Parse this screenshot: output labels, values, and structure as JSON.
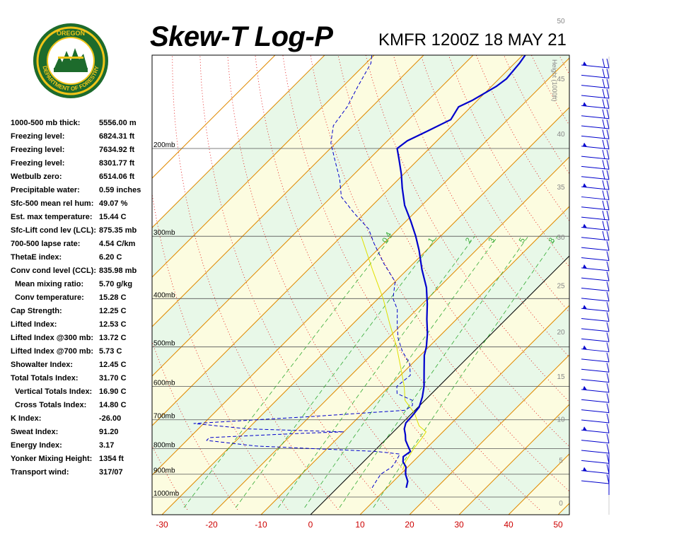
{
  "title": "Skew-T Log-P",
  "station_line": "KMFR 1200Z 18 MAY 21",
  "logo": {
    "top_text": "OREGON",
    "bottom_text": "DEPARTMENT OF FORESTRY"
  },
  "stats": [
    {
      "label": "1000-500 mb thick:",
      "value": "5556.00 m",
      "indent": false
    },
    {
      "label": "Freezing level:",
      "value": "6824.31 ft",
      "indent": false
    },
    {
      "label": "Freezing level:",
      "value": "7634.92 ft",
      "indent": false
    },
    {
      "label": "Freezing level:",
      "value": "8301.77 ft",
      "indent": false
    },
    {
      "label": "Wetbulb zero:",
      "value": "6514.06 ft",
      "indent": false
    },
    {
      "label": "Precipitable water:",
      "value": "0.59 inches",
      "indent": false
    },
    {
      "label": "Sfc-500 mean rel hum:",
      "value": "49.07 %",
      "indent": false
    },
    {
      "label": "Est. max temperature:",
      "value": "15.44 C",
      "indent": false
    },
    {
      "label": "Sfc-Lift cond lev (LCL):",
      "value": "875.35 mb",
      "indent": false
    },
    {
      "label": "700-500 lapse rate:",
      "value": "4.54 C/km",
      "indent": false
    },
    {
      "label": "ThetaE index:",
      "value": "6.20 C",
      "indent": false
    },
    {
      "label": "Conv cond level (CCL):",
      "value": "835.98 mb",
      "indent": false
    },
    {
      "label": "Mean mixing ratio:",
      "value": "5.70 g/kg",
      "indent": true
    },
    {
      "label": "Conv temperature:",
      "value": "15.28 C",
      "indent": true
    },
    {
      "label": "Cap Strength:",
      "value": "12.25 C",
      "indent": false
    },
    {
      "label": "Lifted Index:",
      "value": "12.53 C",
      "indent": false
    },
    {
      "label": "Lifted Index @300 mb:",
      "value": "13.72 C",
      "indent": false
    },
    {
      "label": "Lifted Index @700 mb:",
      "value": "5.73 C",
      "indent": false
    },
    {
      "label": "Showalter Index:",
      "value": "12.45 C",
      "indent": false
    },
    {
      "label": "Total Totals Index:",
      "value": "31.70 C",
      "indent": false
    },
    {
      "label": "Vertical Totals Index:",
      "value": "16.90 C",
      "indent": true
    },
    {
      "label": "Cross Totals Index:",
      "value": "14.80 C",
      "indent": true
    },
    {
      "label": "K Index:",
      "value": "-26.00",
      "indent": false
    },
    {
      "label": "Sweat Index:",
      "value": "91.20",
      "indent": false
    },
    {
      "label": "Energy Index:",
      "value": "3.17",
      "indent": false
    },
    {
      "label": "Yonker Mixing Height:",
      "value": "1354 ft",
      "indent": false
    },
    {
      "label": "Transport wind:",
      "value": "317/07",
      "indent": false
    }
  ],
  "colors": {
    "temperature": "#0000cc",
    "dewpoint": "#0000cc",
    "parcel": "#e0e000",
    "isotherm_temp_label": "#cc0000",
    "dry_adiabat": "#e08a00",
    "moist_adiabat": "#e00000",
    "mixing_ratio": "#33aa33",
    "isobar": "#000000",
    "height_label": "#888888",
    "band_green": "#e8f8e8",
    "band_yellow": "#fcfce0"
  },
  "chart_data": {
    "type": "line",
    "title": "Skew-T Log-P",
    "xlabel": "",
    "ylabel": "",
    "x_ticks": [
      "-30",
      "-20",
      "-10",
      "0",
      "10",
      "20",
      "30",
      "40",
      "50"
    ],
    "x_tick_values": [
      -30,
      -20,
      -10,
      0,
      10,
      20,
      30,
      40,
      50
    ],
    "pressure_levels": [
      {
        "p": 200,
        "label": "200mb"
      },
      {
        "p": 300,
        "label": "300mb"
      },
      {
        "p": 400,
        "label": "400mb"
      },
      {
        "p": 500,
        "label": "500mb"
      },
      {
        "p": 600,
        "label": "600mb"
      },
      {
        "p": 700,
        "label": "700mb"
      },
      {
        "p": 800,
        "label": "800mb"
      },
      {
        "p": 900,
        "label": "900mb"
      },
      {
        "p": 1000,
        "label": "1000mb"
      }
    ],
    "height_axis_title": "Height (1000ft)",
    "height_ticks": [
      {
        "ft1000": 0,
        "label": "0"
      },
      {
        "ft1000": 5,
        "label": "5"
      },
      {
        "ft1000": 10,
        "label": "10"
      },
      {
        "ft1000": 15,
        "label": "15"
      },
      {
        "ft1000": 20,
        "label": "20"
      },
      {
        "ft1000": 25,
        "label": "25"
      },
      {
        "ft1000": 30,
        "label": "30"
      },
      {
        "ft1000": 35,
        "label": "35"
      },
      {
        "ft1000": 40,
        "label": "40"
      },
      {
        "ft1000": 45,
        "label": "45"
      },
      {
        "ft1000": 50,
        "label": "50"
      }
    ],
    "mixing_ratio_labels": [
      "0.4",
      "1",
      "2",
      "3",
      "5",
      "8"
    ],
    "mixing_ratio_values": [
      0.4,
      1,
      2,
      3,
      5,
      8
    ],
    "series": [
      {
        "name": "Temperature",
        "points": [
          [
            958,
            13.9
          ],
          [
            930,
            12.9
          ],
          [
            900,
            11.0
          ],
          [
            870,
            9.6
          ],
          [
            850,
            8.0
          ],
          [
            830,
            7.0
          ],
          [
            810,
            7.4
          ],
          [
            790,
            5.8
          ],
          [
            770,
            4.2
          ],
          [
            750,
            3.0
          ],
          [
            730,
            1.6
          ],
          [
            710,
            0.7
          ],
          [
            690,
            0.6
          ],
          [
            660,
            0.2
          ],
          [
            630,
            -1.2
          ],
          [
            600,
            -3.0
          ],
          [
            560,
            -6.0
          ],
          [
            520,
            -9.2
          ],
          [
            500,
            -10.5
          ],
          [
            470,
            -13.0
          ],
          [
            440,
            -16.0
          ],
          [
            410,
            -19.0
          ],
          [
            380,
            -22.5
          ],
          [
            350,
            -27.0
          ],
          [
            320,
            -31.5
          ],
          [
            300,
            -35.0
          ],
          [
            280,
            -39.0
          ],
          [
            260,
            -43.5
          ],
          [
            240,
            -47.5
          ],
          [
            225,
            -50.5
          ],
          [
            210,
            -54.0
          ],
          [
            200,
            -56.5
          ],
          [
            193,
            -56.0
          ],
          [
            185,
            -54.0
          ],
          [
            175,
            -51.5
          ],
          [
            165,
            -52.5
          ],
          [
            160,
            -51.0
          ],
          [
            150,
            -49.0
          ],
          [
            145,
            -48.5
          ],
          [
            135,
            -49.0
          ],
          [
            125,
            -50.0
          ]
        ]
      },
      {
        "name": "Dewpoint",
        "points": [
          [
            958,
            7.0
          ],
          [
            930,
            6.5
          ],
          [
            900,
            6.0
          ],
          [
            870,
            6.8
          ],
          [
            850,
            6.5
          ],
          [
            820,
            5.8
          ],
          [
            810,
            0.5
          ],
          [
            790,
            -25.0
          ],
          [
            770,
            -36.0
          ],
          [
            760,
            -36.0
          ],
          [
            745,
            -18.0
          ],
          [
            740,
            -10.0
          ],
          [
            730,
            -30.0
          ],
          [
            712,
            -42.0
          ],
          [
            700,
            -30.0
          ],
          [
            690,
            -20.0
          ],
          [
            670,
            -2.0
          ],
          [
            655,
            -1.5
          ],
          [
            640,
            -2.5
          ],
          [
            620,
            -7.0
          ],
          [
            600,
            -8.5
          ],
          [
            570,
            -8.0
          ],
          [
            540,
            -10.5
          ],
          [
            510,
            -14.5
          ],
          [
            480,
            -18.0
          ],
          [
            450,
            -21.0
          ],
          [
            420,
            -24.0
          ],
          [
            400,
            -27.0
          ],
          [
            370,
            -30.0
          ],
          [
            340,
            -36.0
          ],
          [
            310,
            -42.0
          ],
          [
            290,
            -46.0
          ],
          [
            270,
            -52.0
          ],
          [
            250,
            -58.0
          ],
          [
            230,
            -62.0
          ],
          [
            210,
            -67.0
          ],
          [
            195,
            -71.0
          ],
          [
            180,
            -74.0
          ],
          [
            165,
            -75.0
          ],
          [
            150,
            -77.0
          ],
          [
            135,
            -79.0
          ],
          [
            125,
            -82.0
          ]
        ]
      },
      {
        "name": "Parcel",
        "points": [
          [
            880,
            9.5
          ],
          [
            850,
            8.5
          ],
          [
            800,
            7.5
          ],
          [
            760,
            7.0
          ],
          [
            740,
            6.6
          ],
          [
            720,
            4.0
          ],
          [
            700,
            2.3
          ],
          [
            680,
            0.6
          ],
          [
            640,
            -4.0
          ],
          [
            600,
            -7.0
          ],
          [
            550,
            -11.5
          ],
          [
            500,
            -16.5
          ],
          [
            450,
            -22.5
          ],
          [
            400,
            -29.0
          ],
          [
            350,
            -37.0
          ],
          [
            300,
            -46.0
          ]
        ]
      }
    ],
    "wind_barbs_count": 42
  }
}
